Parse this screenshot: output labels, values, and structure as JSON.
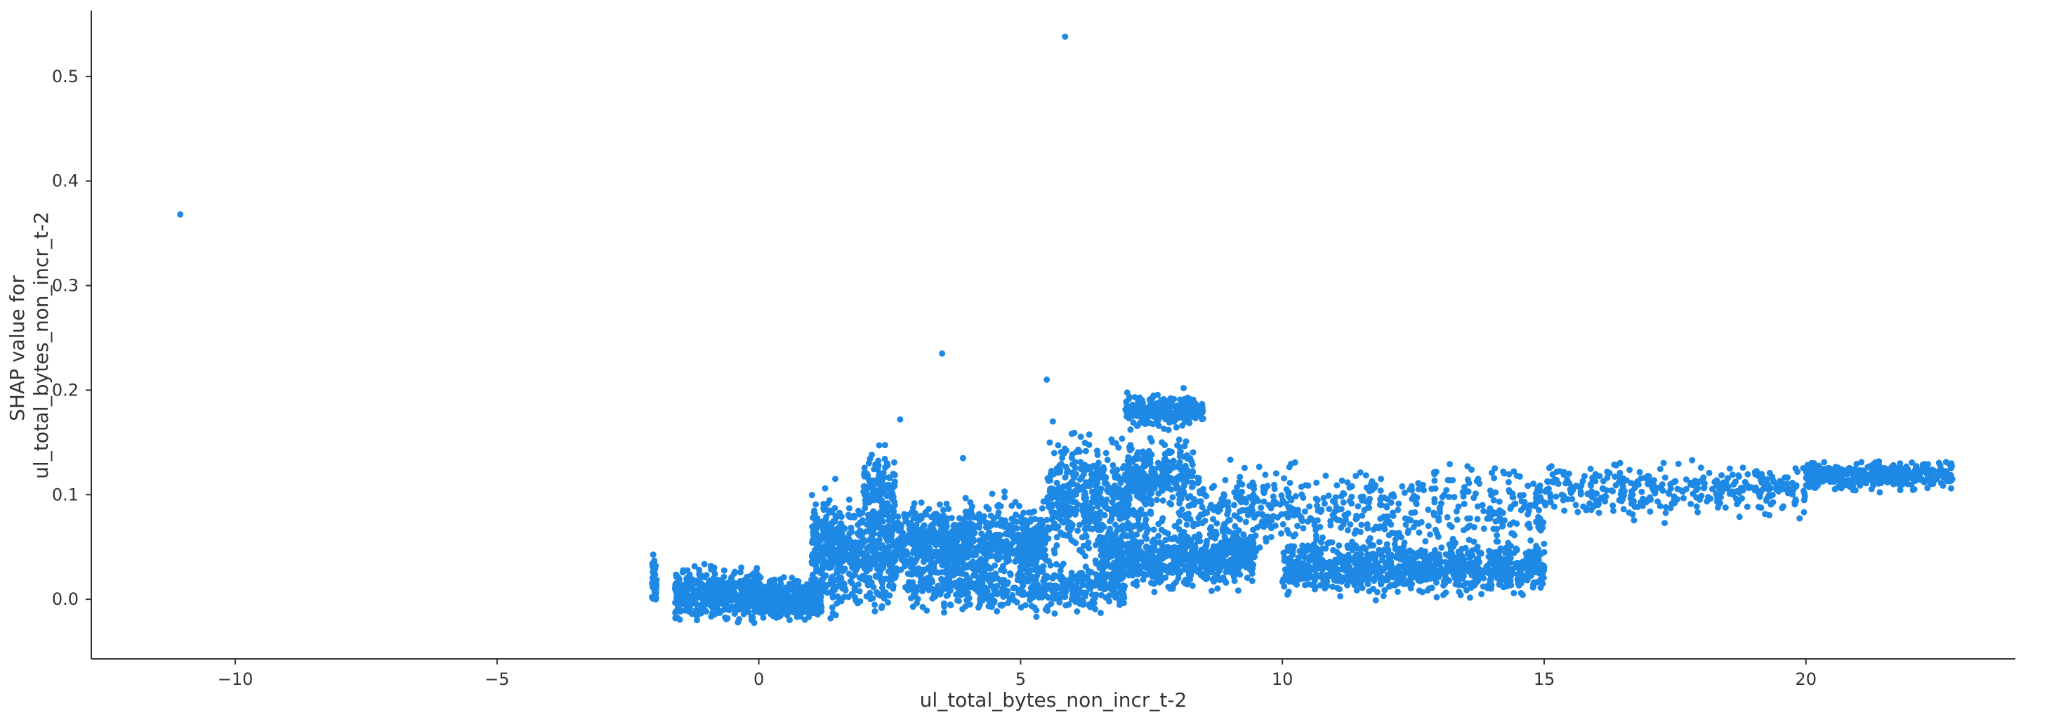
{
  "chart_data": {
    "type": "scatter",
    "xlabel": "ul_total_bytes_non_incr_t-2",
    "ylabel": [
      "SHAP value for",
      "ul_total_bytes_non_incr_t-2"
    ],
    "xlim": [
      -12.75,
      24.0
    ],
    "ylim": [
      -0.057,
      0.563
    ],
    "xticks": [
      -10,
      -5,
      0,
      5,
      10,
      15,
      20
    ],
    "xtick_labels": [
      "−10",
      "−5",
      "0",
      "5",
      "10",
      "15",
      "20"
    ],
    "yticks": [
      0.0,
      0.1,
      0.2,
      0.3,
      0.4,
      0.5
    ],
    "ytick_labels": [
      "0.0",
      "0.1",
      "0.2",
      "0.3",
      "0.4",
      "0.5"
    ],
    "grid": false,
    "legend": "none",
    "point_color": "#1e88e5",
    "outliers": [
      {
        "x": -11.05,
        "y": 0.368
      },
      {
        "x": 5.85,
        "y": 0.538
      },
      {
        "x": 3.5,
        "y": 0.235
      },
      {
        "x": 5.5,
        "y": 0.21
      },
      {
        "x": 2.7,
        "y": 0.172
      },
      {
        "x": 3.9,
        "y": 0.135
      }
    ],
    "clusters": [
      {
        "x_range": [
          -2.05,
          -1.95
        ],
        "y_center": 0.018,
        "y_spread": 0.018,
        "count": 45
      },
      {
        "x_range": [
          -1.6,
          0.0
        ],
        "y_center": 0.005,
        "y_spread": 0.018,
        "count": 500
      },
      {
        "x_range": [
          0.0,
          1.2
        ],
        "y_center": 0.0,
        "y_spread": 0.014,
        "count": 400
      },
      {
        "x_range": [
          1.0,
          2.6
        ],
        "y_center": 0.045,
        "y_spread": 0.04,
        "count": 600
      },
      {
        "x_range": [
          2.0,
          2.6
        ],
        "y_center": 0.105,
        "y_spread": 0.025,
        "count": 120
      },
      {
        "x_range": [
          2.6,
          5.5
        ],
        "y_center": 0.055,
        "y_spread": 0.028,
        "count": 800
      },
      {
        "x_range": [
          2.8,
          7.0
        ],
        "y_center": 0.012,
        "y_spread": 0.018,
        "count": 500
      },
      {
        "x_range": [
          5.5,
          7.5
        ],
        "y_center": 0.1,
        "y_spread": 0.04,
        "count": 500
      },
      {
        "x_range": [
          7.0,
          8.5
        ],
        "y_center": 0.18,
        "y_spread": 0.012,
        "count": 250
      },
      {
        "x_range": [
          6.5,
          9.5
        ],
        "y_center": 0.04,
        "y_spread": 0.022,
        "count": 700
      },
      {
        "x_range": [
          7.0,
          8.3
        ],
        "y_center": 0.12,
        "y_spread": 0.025,
        "count": 200
      },
      {
        "x_range": [
          8.0,
          10.0
        ],
        "y_center": 0.085,
        "y_spread": 0.03,
        "count": 200
      },
      {
        "x_range": [
          10.0,
          15.0
        ],
        "y_center": 0.03,
        "y_spread": 0.018,
        "count": 900
      },
      {
        "x_range": [
          10.0,
          15.0
        ],
        "y_center": 0.085,
        "y_spread": 0.035,
        "count": 400
      },
      {
        "x_range": [
          15.0,
          20.0
        ],
        "y_center": 0.105,
        "y_spread": 0.02,
        "count": 350
      },
      {
        "x_range": [
          20.0,
          22.8
        ],
        "y_center": 0.118,
        "y_spread": 0.01,
        "count": 400
      }
    ]
  }
}
